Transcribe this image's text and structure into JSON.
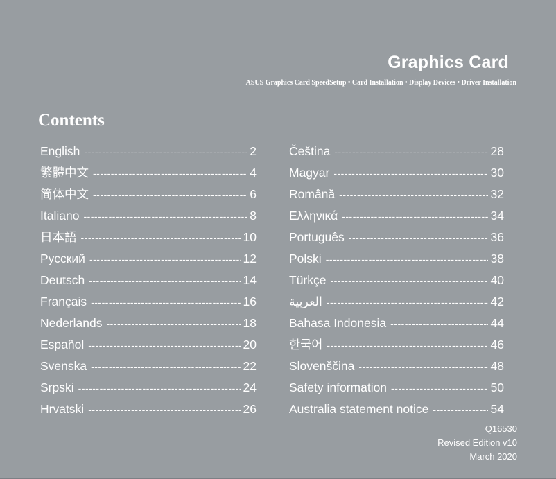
{
  "header": {
    "title": "Graphics Card",
    "subtitle": "ASUS Graphics Card SpeedSetup • Card Installation • Display Devices • Driver Installation"
  },
  "contents_heading": "Contents",
  "toc_left": [
    {
      "label": "English",
      "page": "2"
    },
    {
      "label": "繁體中文",
      "page": "4"
    },
    {
      "label": "简体中文",
      "page": "6"
    },
    {
      "label": "Italiano",
      "page": "8"
    },
    {
      "label": "日本語",
      "page": "10"
    },
    {
      "label": "Русский",
      "page": "12"
    },
    {
      "label": "Deutsch",
      "page": "14"
    },
    {
      "label": "Français",
      "page": "16"
    },
    {
      "label": "Nederlands",
      "page": "18"
    },
    {
      "label": "Español",
      "page": "20"
    },
    {
      "label": "Svenska",
      "page": "22"
    },
    {
      "label": "Srpski",
      "page": "24"
    },
    {
      "label": "Hrvatski",
      "page": "26"
    }
  ],
  "toc_right": [
    {
      "label": "Čeština",
      "page": "28"
    },
    {
      "label": "Magyar",
      "page": "30"
    },
    {
      "label": "Română",
      "page": "32"
    },
    {
      "label": "Ελληνικά",
      "page": "34"
    },
    {
      "label": "Português",
      "page": "36"
    },
    {
      "label": "Polski",
      "page": "38"
    },
    {
      "label": "Türkçe",
      "page": "40"
    },
    {
      "label": "العربية",
      "page": "42"
    },
    {
      "label": "Bahasa Indonesia",
      "page": "44"
    },
    {
      "label": "한국어",
      "page": "46"
    },
    {
      "label": "Slovenščina",
      "page": "48"
    },
    {
      "label": "Safety information",
      "page": "50"
    },
    {
      "label": "Australia statement notice",
      "page": "54"
    }
  ],
  "footer": {
    "doc_code": "Q16530",
    "edition": "Revised Edition v10",
    "date": "March 2020"
  },
  "colors": {
    "background": "#989da1",
    "text": "#ffffff"
  }
}
